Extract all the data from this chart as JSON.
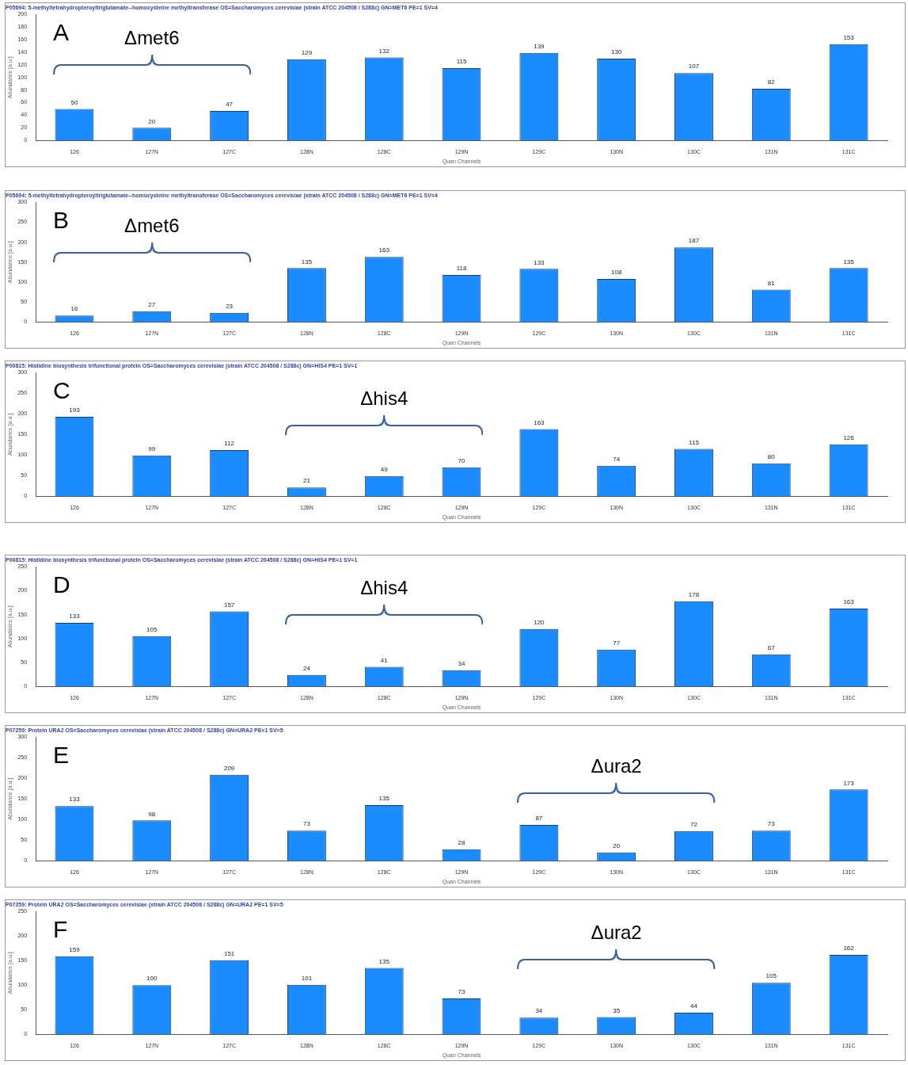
{
  "chart_data": [
    {
      "type": "bar",
      "title": "P05694: 5-methyltetrahydropteroyltriglutamate--homocysteine methyltransferase OS=Saccharomyces cerevisiae (strain ATCC 204508 / S288c) GN=MET6 PE=1 SV=4",
      "xlabel": "Quan Channels",
      "ylabel": "Abundance [a.u.]",
      "categories": [
        "126",
        "127N",
        "127C",
        "128N",
        "128C",
        "129N",
        "129C",
        "130N",
        "130C",
        "131N",
        "131C"
      ],
      "values": [
        50,
        20,
        47,
        129,
        132,
        115,
        139,
        130,
        107,
        82,
        153
      ],
      "color": "#1a8cff",
      "ylim": [
        0,
        200
      ],
      "yticks": [
        0,
        20,
        40,
        60,
        80,
        100,
        120,
        140,
        160,
        180,
        200
      ],
      "data_labels": true,
      "annotations": [
        "A",
        "Δmet6"
      ]
    },
    {
      "type": "bar",
      "title": "P05694: 5-methyltetrahydropteroyltriglutamate--homocysteine methyltransferase OS=Saccharomyces cerevisiae (strain ATCC 204508 / S288c) GN=MET6 PE=1 SV=4",
      "xlabel": "Quan Channels",
      "ylabel": "Abundance [a.u.]",
      "categories": [
        "126",
        "127N",
        "127C",
        "128N",
        "128C",
        "129N",
        "129C",
        "130N",
        "130C",
        "131N",
        "131C"
      ],
      "values": [
        16,
        27,
        23,
        135,
        163,
        118,
        133,
        108,
        187,
        81,
        135
      ],
      "color": "#1a8cff",
      "ylim": [
        0,
        300
      ],
      "yticks": [
        0,
        50,
        100,
        150,
        200,
        250,
        300
      ],
      "data_labels": true,
      "annotations": [
        "B",
        "Δmet6"
      ]
    },
    {
      "type": "bar",
      "title": "P00815: Histidine biosynthesis trifunctional protein OS=Saccharomyces cerevisiae (strain ATCC 204508 / S288c) GN=HIS4 PE=1 SV=1",
      "xlabel": "Quan Channels",
      "ylabel": "Abundance [a.u.]",
      "categories": [
        "126",
        "127N",
        "127C",
        "128N",
        "128C",
        "129N",
        "129C",
        "130N",
        "130C",
        "131N",
        "131C"
      ],
      "values": [
        193,
        99,
        112,
        21,
        49,
        70,
        163,
        74,
        115,
        80,
        126
      ],
      "color": "#1a8cff",
      "ylim": [
        0,
        300
      ],
      "yticks": [
        0,
        50,
        100,
        150,
        200,
        250,
        300
      ],
      "data_labels": true,
      "annotations": [
        "C",
        "Δhis4"
      ]
    },
    {
      "type": "bar",
      "title": "P00815: Histidine biosynthesis trifunctional protein OS=Saccharomyces cerevisiae (strain ATCC 204508 / S288c) GN=HIS4 PE=1 SV=1",
      "xlabel": "Quan Channels",
      "ylabel": "Abundance [a.u.]",
      "categories": [
        "126",
        "127N",
        "127C",
        "128N",
        "128C",
        "129N",
        "129C",
        "130N",
        "130C",
        "131N",
        "131C"
      ],
      "values": [
        133,
        105,
        157,
        24,
        41,
        34,
        120,
        77,
        178,
        67,
        163
      ],
      "color": "#1a8cff",
      "ylim": [
        0,
        250
      ],
      "yticks": [
        0,
        50,
        100,
        150,
        200,
        250
      ],
      "data_labels": true,
      "annotations": [
        "D",
        "Δhis4"
      ]
    },
    {
      "type": "bar",
      "title": "P07259: Protein URA2 OS=Saccharomyces cerevisiae (strain ATCC 204508 / S288c) GN=URA2 PE=1 SV=5",
      "xlabel": "Quan Channels",
      "ylabel": "Abundance [a.u.]",
      "categories": [
        "126",
        "127N",
        "127C",
        "128N",
        "128C",
        "129N",
        "129C",
        "130N",
        "130C",
        "131N",
        "131C"
      ],
      "values": [
        133,
        98,
        209,
        73,
        135,
        28,
        87,
        20,
        72,
        73,
        173
      ],
      "color": "#1a8cff",
      "ylim": [
        0,
        300
      ],
      "yticks": [
        0,
        50,
        100,
        150,
        200,
        250,
        300
      ],
      "data_labels": true,
      "annotations": [
        "E",
        "Δura2"
      ]
    },
    {
      "type": "bar",
      "title": "P07259: Protein URA2 OS=Saccharomyces cerevisiae (strain ATCC 204508 / S288c) GN=URA2 PE=1 SV=5",
      "xlabel": "Quan Channels",
      "ylabel": "Abundance [a.u.]",
      "categories": [
        "126",
        "127N",
        "127C",
        "128N",
        "128C",
        "129N",
        "129C",
        "130N",
        "130C",
        "131N",
        "131C"
      ],
      "values": [
        159,
        100,
        151,
        101,
        135,
        73,
        34,
        35,
        44,
        105,
        162
      ],
      "color": "#1a8cff",
      "ylim": [
        0,
        250
      ],
      "yticks": [
        0,
        50,
        100,
        150,
        200,
        250
      ],
      "data_labels": true,
      "annotations": [
        "F",
        "Δura2"
      ]
    }
  ]
}
